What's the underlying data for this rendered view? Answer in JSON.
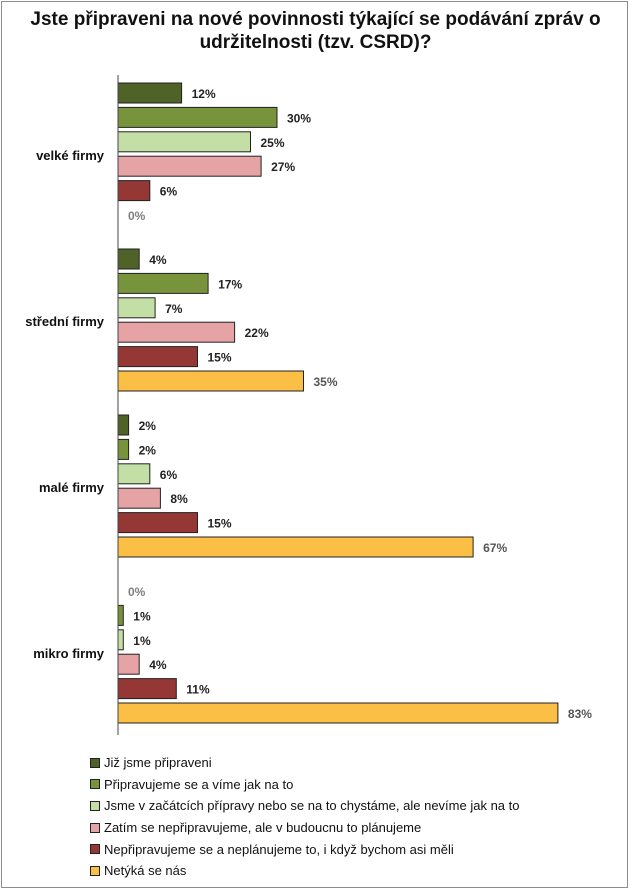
{
  "chart_data": {
    "type": "bar",
    "orientation": "horizontal",
    "title": "Jste připraveni na nové povinnosti týkající se podávání zpráv o udržitelnosti (tzv. CSRD)?",
    "categories": [
      "velké firmy",
      "střední firmy",
      "malé firmy",
      "mikro firmy"
    ],
    "series": [
      {
        "name": "Již jsme připraveni",
        "color": "#4f6228",
        "values": [
          12,
          4,
          2,
          0
        ]
      },
      {
        "name": "Připravujeme se a víme jak na to",
        "color": "#77933c",
        "values": [
          30,
          17,
          2,
          1
        ]
      },
      {
        "name": "Jsme v začátcích přípravy nebo se na to chystáme, ale nevíme jak na to",
        "color": "#c4dfa5",
        "values": [
          25,
          7,
          6,
          1
        ]
      },
      {
        "name": "Zatím se nepřipravujeme, ale v budoucnu to plánujeme",
        "color": "#e6a3a6",
        "values": [
          27,
          22,
          8,
          4
        ]
      },
      {
        "name": "Nepřipravujeme se a neplánujeme to, i když bychom asi měli",
        "color": "#953735",
        "values": [
          6,
          15,
          15,
          11
        ]
      },
      {
        "name": "Netýká se nás",
        "color": "#fbbf45",
        "values": [
          0,
          35,
          67,
          83
        ]
      }
    ],
    "value_suffix": "%",
    "xlim": [
      0,
      100
    ],
    "grid": false,
    "legend_position": "bottom-left"
  }
}
